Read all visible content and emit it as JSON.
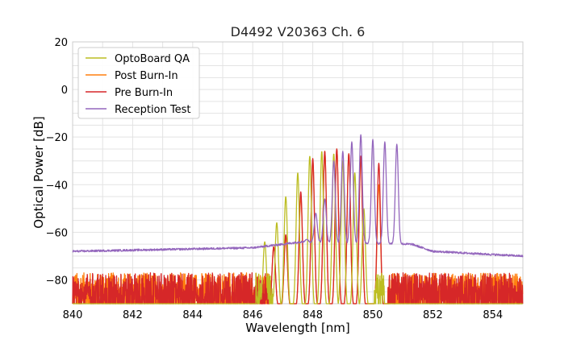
{
  "chart_data": {
    "type": "line",
    "title": "D4492 V20363 Ch. 6",
    "xlabel": "Wavelength [nm]",
    "ylabel": "Optical Power [dB]",
    "xlim": [
      840,
      855
    ],
    "ylim": [
      -90,
      20
    ],
    "x_ticks": [
      840,
      842,
      844,
      846,
      848,
      850,
      852,
      854
    ],
    "x_tick_labels": [
      "840",
      "842",
      "844",
      "846",
      "848",
      "850",
      "852",
      "854"
    ],
    "y_ticks": [
      20,
      0,
      -20,
      -40,
      -60,
      -80
    ],
    "y_tick_labels": [
      "20",
      "0",
      "−20",
      "−40",
      "−60",
      "−80"
    ],
    "grid": true,
    "legend_position": "top-left",
    "series": [
      {
        "name": "OptoBoard QA",
        "color": "#bcbd22",
        "noise_floor": -80,
        "noise_x_range": [
          846.1,
          846.8
        ],
        "noise_x_range_2": [
          850.05,
          850.4
        ],
        "peaks": [
          {
            "x": 846.4,
            "y": -64
          },
          {
            "x": 846.8,
            "y": -56
          },
          {
            "x": 847.1,
            "y": -45
          },
          {
            "x": 847.5,
            "y": -35
          },
          {
            "x": 847.9,
            "y": -28
          },
          {
            "x": 848.3,
            "y": -26
          },
          {
            "x": 848.7,
            "y": -27
          },
          {
            "x": 849.0,
            "y": -30
          },
          {
            "x": 849.4,
            "y": -35
          },
          {
            "x": 849.7,
            "y": -50
          }
        ]
      },
      {
        "name": "Post Burn-In",
        "color": "#ff7f0e",
        "noise_floor": -80,
        "noise_x_range": [
          840,
          846.6
        ],
        "noise_x_range_2": [
          850.5,
          855
        ],
        "peaks": [
          {
            "x": 846.7,
            "y": -66
          },
          {
            "x": 847.1,
            "y": -62
          },
          {
            "x": 847.6,
            "y": -45
          },
          {
            "x": 848.0,
            "y": -30
          },
          {
            "x": 848.4,
            "y": -26
          },
          {
            "x": 848.8,
            "y": -25
          },
          {
            "x": 849.2,
            "y": -27
          },
          {
            "x": 849.6,
            "y": -29
          },
          {
            "x": 850.2,
            "y": -40
          }
        ]
      },
      {
        "name": "Pre Burn-In",
        "color": "#d62728",
        "noise_floor": -80,
        "noise_x_range": [
          840,
          846.6
        ],
        "noise_x_range_2": [
          850.5,
          855
        ],
        "peaks": [
          {
            "x": 846.7,
            "y": -66
          },
          {
            "x": 847.1,
            "y": -61
          },
          {
            "x": 847.6,
            "y": -43
          },
          {
            "x": 848.0,
            "y": -29
          },
          {
            "x": 848.4,
            "y": -26
          },
          {
            "x": 848.8,
            "y": -25
          },
          {
            "x": 849.2,
            "y": -27
          },
          {
            "x": 849.6,
            "y": -28
          },
          {
            "x": 850.2,
            "y": -31
          }
        ]
      },
      {
        "name": "Reception Test",
        "color": "#9467bd",
        "baseline": [
          {
            "x": 840,
            "y": -68
          },
          {
            "x": 846,
            "y": -66.5
          },
          {
            "x": 847.0,
            "y": -65
          },
          {
            "x": 847.6,
            "y": -64
          },
          {
            "x": 851.3,
            "y": -65
          },
          {
            "x": 852,
            "y": -68
          },
          {
            "x": 855,
            "y": -70
          }
        ],
        "peaks": [
          {
            "x": 847.8,
            "y": -63
          },
          {
            "x": 848.1,
            "y": -52
          },
          {
            "x": 848.4,
            "y": -46
          },
          {
            "x": 848.7,
            "y": -30
          },
          {
            "x": 849.0,
            "y": -26
          },
          {
            "x": 849.3,
            "y": -22
          },
          {
            "x": 849.6,
            "y": -19
          },
          {
            "x": 850.0,
            "y": -21
          },
          {
            "x": 850.4,
            "y": -22
          },
          {
            "x": 850.8,
            "y": -23
          }
        ]
      }
    ]
  }
}
